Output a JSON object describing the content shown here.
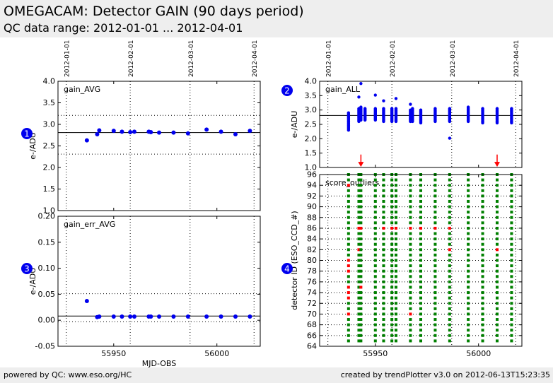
{
  "header": {
    "title": "OMEGACAM: Detector GAIN (90 days period)",
    "subtitle": "QC data range: 2012-01-01 ... 2012-04-01"
  },
  "footer": {
    "left": "powered by QC: www.eso.org/HC",
    "right": "created by trendPlotter v3.0 on 2012-06-13T15:23:35"
  },
  "colors": {
    "points": "#0000ee",
    "outlier": "#ff0000",
    "ok": "#008000",
    "badge": "#0000ee"
  },
  "icons": {
    "outlier_marker": "down-arrow-icon"
  },
  "date_ticks": [
    {
      "mjd": 55927,
      "label": "2012-01-01"
    },
    {
      "mjd": 55958,
      "label": "2012-02-01"
    },
    {
      "mjd": 55987,
      "label": "2012-03-01"
    },
    {
      "mjd": 56018,
      "label": "2012-04-01"
    }
  ],
  "chart_data": [
    {
      "id": "p1",
      "badge": "1",
      "type": "scatter",
      "label": "gain_AVG",
      "ylabel": "e-/ADU",
      "xlabel": "",
      "xlim": [
        55923,
        56021
      ],
      "ylim": [
        1.0,
        4.0
      ],
      "yticks": [
        1.0,
        1.5,
        2.0,
        2.5,
        3.0,
        3.5,
        4.0
      ],
      "ytick_decimals": 1,
      "xticks": [
        55950,
        56000
      ],
      "show_xticklabels": false,
      "hlines": [
        {
          "y": 2.81,
          "style": "solid"
        },
        {
          "y": 3.21,
          "style": "dotted"
        },
        {
          "y": 2.31,
          "style": "dotted"
        }
      ],
      "x": [
        55937,
        55942,
        55943,
        55950,
        55954,
        55958,
        55960,
        55967,
        55968,
        55972,
        55979,
        55986,
        55995,
        56002,
        56009,
        56016
      ],
      "y": [
        2.63,
        2.77,
        2.86,
        2.85,
        2.83,
        2.82,
        2.83,
        2.83,
        2.82,
        2.81,
        2.81,
        2.79,
        2.88,
        2.83,
        2.77,
        2.85
      ]
    },
    {
      "id": "p3",
      "badge": "3",
      "type": "scatter",
      "label": "gain_err_AVG",
      "ylabel": "e-/ADU",
      "xlabel": "MJD-OBS",
      "xlim": [
        55923,
        56021
      ],
      "ylim": [
        -0.05,
        0.2
      ],
      "yticks": [
        -0.05,
        0.0,
        0.05,
        0.1,
        0.15,
        0.2
      ],
      "ytick_decimals": 2,
      "xticks": [
        55950,
        56000
      ],
      "show_xticklabels": true,
      "hlines": [
        {
          "y": 0.008,
          "style": "solid"
        },
        {
          "y": 0.051,
          "style": "dotted"
        },
        {
          "y": -0.003,
          "style": "dotted"
        }
      ],
      "x": [
        55937,
        55942,
        55943,
        55950,
        55954,
        55958,
        55960,
        55967,
        55968,
        55972,
        55979,
        55986,
        55995,
        56002,
        56009,
        56016
      ],
      "y": [
        0.037,
        0.006,
        0.007,
        0.007,
        0.007,
        0.007,
        0.007,
        0.007,
        0.007,
        0.007,
        0.007,
        0.007,
        0.007,
        0.007,
        0.007,
        0.007
      ]
    },
    {
      "id": "p2",
      "badge": "2",
      "type": "scatter",
      "label": "gain_ALL",
      "ylabel": "e-/ADU",
      "xlabel": "",
      "xlim": [
        55923,
        56021
      ],
      "ylim": [
        1.0,
        4.0
      ],
      "yticks": [
        1.0,
        1.5,
        2.0,
        2.5,
        3.0,
        3.5,
        4.0
      ],
      "ytick_decimals": 1,
      "xticks": [
        55950,
        56000
      ],
      "show_xticklabels": false,
      "hlines": [
        {
          "y": 2.81,
          "style": "solid"
        }
      ],
      "columns": [
        {
          "x": 55937,
          "min": 2.3,
          "max": 2.9
        },
        {
          "x": 55942,
          "min": 2.6,
          "max": 3.05
        },
        {
          "x": 55943,
          "min": 2.65,
          "max": 3.1
        },
        {
          "x": 55945,
          "min": 2.65,
          "max": 3.05
        },
        {
          "x": 55950,
          "min": 2.65,
          "max": 3.05
        },
        {
          "x": 55954,
          "min": 2.6,
          "max": 3.05
        },
        {
          "x": 55958,
          "min": 2.6,
          "max": 3.05
        },
        {
          "x": 55960,
          "min": 2.6,
          "max": 3.05
        },
        {
          "x": 55967,
          "min": 2.6,
          "max": 3.0
        },
        {
          "x": 55968,
          "min": 2.6,
          "max": 3.05
        },
        {
          "x": 55972,
          "min": 2.55,
          "max": 3.0
        },
        {
          "x": 55979,
          "min": 2.6,
          "max": 3.05
        },
        {
          "x": 55986,
          "min": 2.6,
          "max": 3.05
        },
        {
          "x": 55995,
          "min": 2.6,
          "max": 3.1
        },
        {
          "x": 56002,
          "min": 2.55,
          "max": 3.05
        },
        {
          "x": 56009,
          "min": 2.55,
          "max": 3.05
        },
        {
          "x": 56016,
          "min": 2.55,
          "max": 3.05
        }
      ],
      "extra_points": [
        {
          "x": 55943,
          "y": 3.92
        },
        {
          "x": 55942,
          "y": 3.45
        },
        {
          "x": 55950,
          "y": 3.52
        },
        {
          "x": 55954,
          "y": 3.32
        },
        {
          "x": 55960,
          "y": 3.4
        },
        {
          "x": 55967,
          "y": 3.2
        },
        {
          "x": 55986,
          "y": 2.02
        }
      ],
      "outlier_arrows": [
        {
          "x": 55943,
          "y_from": 1.45,
          "y_to": 1.02
        },
        {
          "x": 56009,
          "y_from": 1.45,
          "y_to": 1.02
        }
      ]
    },
    {
      "id": "p4",
      "badge": "4",
      "type": "scatter",
      "label": "score_outliers",
      "ylabel": "detector ID (ESO_CCD_#)",
      "xlabel": "",
      "xlim": [
        55923,
        56021
      ],
      "ylim": [
        64,
        96
      ],
      "yticks": [
        64,
        66,
        68,
        70,
        72,
        74,
        76,
        78,
        80,
        82,
        84,
        86,
        88,
        90,
        92,
        94,
        96
      ],
      "ytick_decimals": 0,
      "xticks": [
        55950,
        56000
      ],
      "show_xticklabels": true,
      "xtick_labels": [
        "55950",
        "56000"
      ],
      "detector_range": [
        65,
        96
      ],
      "x": [
        55937,
        55942,
        55943,
        55950,
        55954,
        55958,
        55960,
        55967,
        55972,
        55979,
        55986,
        55995,
        56002,
        56009,
        56016
      ],
      "outliers": [
        {
          "x": 55937,
          "ids": [
            94,
            80,
            79,
            78,
            75,
            74,
            73,
            70
          ]
        },
        {
          "x": 55942,
          "ids": [
            86,
            82
          ]
        },
        {
          "x": 55943,
          "ids": [
            86,
            75
          ]
        },
        {
          "x": 55954,
          "ids": [
            86
          ]
        },
        {
          "x": 55958,
          "ids": [
            86
          ]
        },
        {
          "x": 55960,
          "ids": [
            86
          ]
        },
        {
          "x": 55967,
          "ids": [
            86,
            70
          ]
        },
        {
          "x": 55972,
          "ids": [
            86
          ]
        },
        {
          "x": 55979,
          "ids": [
            86
          ]
        },
        {
          "x": 55986,
          "ids": [
            86,
            82
          ]
        },
        {
          "x": 56009,
          "ids": [
            82
          ]
        }
      ]
    }
  ]
}
